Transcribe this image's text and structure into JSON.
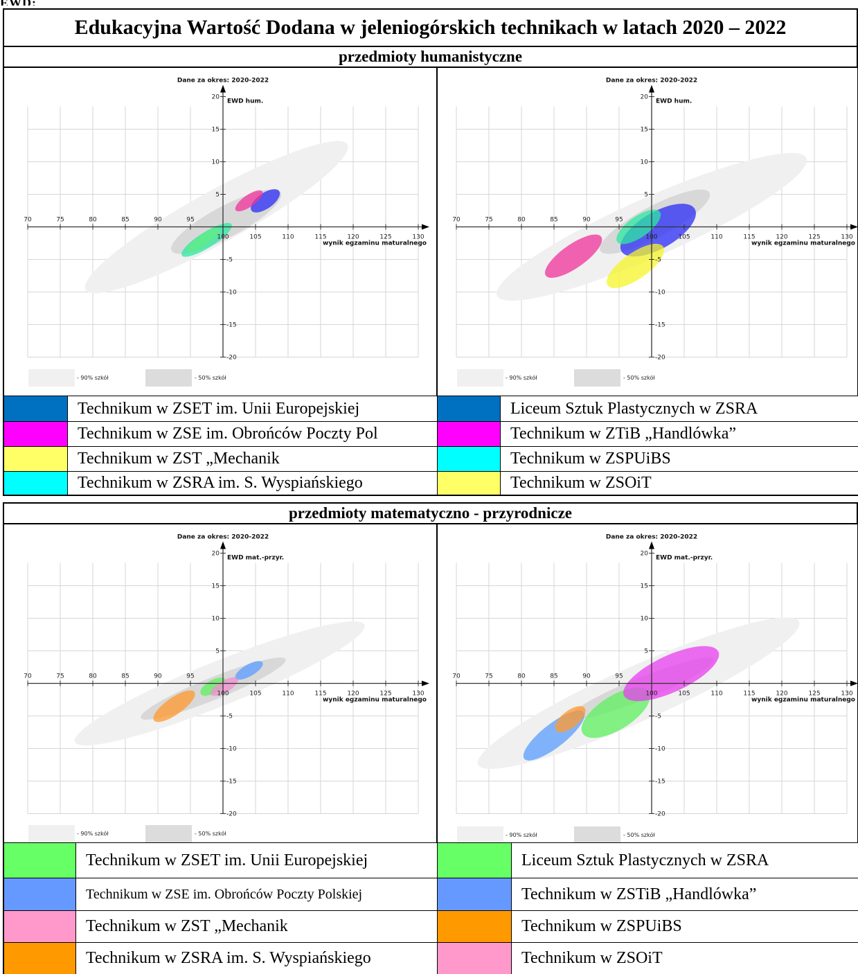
{
  "header_fragment": "EWD:",
  "title": "Edukacyjna Wartość Dodana w jeleniogórskich technikach w latach 2020 – 2022",
  "section1": "przedmioty humanistyczne",
  "section2": "przedmioty matematyczno - przyrodnicze",
  "chart_common": {
    "period": "Dane za okres: 2020-2022",
    "xlabel": "wynik egzaminu maturalnego",
    "legend_90": "- 90% szkół",
    "legend_50": "- 50% szkół",
    "xticks": [
      70,
      75,
      80,
      85,
      90,
      95,
      100,
      105,
      110,
      115,
      120,
      125,
      130
    ],
    "yticks": [
      -20,
      -15,
      -10,
      -5,
      5,
      10,
      15,
      20
    ]
  },
  "chart_data": [
    {
      "type": "scatter",
      "title": "Dane za okres: 2020-2022",
      "xlabel": "wynik egzaminu maturalnego",
      "ylabel": "EWD hum.",
      "xlim": [
        70,
        130
      ],
      "ylim": [
        -20,
        20
      ],
      "background": [
        {
          "name": "- 90% szkół",
          "x": 99,
          "y": 1.5,
          "w": 23,
          "h": 4.0,
          "angle": 29,
          "color": "#f0f0f0"
        },
        {
          "name": "- 50% szkół",
          "x": 100.5,
          "y": 0.8,
          "w": 9.5,
          "h": 2.4,
          "angle": 28,
          "color": "#d8d8d8"
        }
      ],
      "series": [
        {
          "name": "Technikum w ZSET im. Unii Europejskiej",
          "x": 106.5,
          "y": 4.0,
          "w": 2.6,
          "h": 1.2,
          "angle": 35,
          "color": "#2a2cf5"
        },
        {
          "name": "Technikum w ZSE im. Obrońców Poczty Pol",
          "x": 104,
          "y": 4.0,
          "w": 2.5,
          "h": 0.9,
          "angle": 35,
          "color": "#f0339a"
        },
        {
          "name": "Technikum  w ZST „Mechanik",
          "x": 97,
          "y": -2.0,
          "w": 3.0,
          "h": 0.8,
          "angle": 35,
          "color": "#f5f528"
        },
        {
          "name": "Technikum w ZSRA im. S. Wyspiańskiego",
          "x": 97.5,
          "y": -2.0,
          "w": 4.5,
          "h": 1.2,
          "angle": 32,
          "color": "#2de8a0"
        }
      ]
    },
    {
      "type": "scatter",
      "title": "Dane za okres: 2020-2022",
      "xlabel": "wynik egzaminu maturalnego",
      "ylabel": "EWD hum.",
      "xlim": [
        70,
        130
      ],
      "ylim": [
        -20,
        20
      ],
      "background": [
        {
          "name": "- 90% szkół",
          "x": 100,
          "y": 0,
          "w": 26,
          "h": 4.5,
          "angle": 24,
          "color": "#f0f0f0"
        },
        {
          "name": "- 50% szkół",
          "x": 100.5,
          "y": 0.8,
          "w": 9.5,
          "h": 2.4,
          "angle": 28,
          "color": "#d8d8d8"
        }
      ],
      "series": [
        {
          "name": "Liceum Sztuk Plastycznych w ZSRA",
          "x": 101,
          "y": -0.5,
          "w": 6.5,
          "h": 2.8,
          "angle": 30,
          "color": "#2a2cf5"
        },
        {
          "name": "Technikum w ZTiB „Handlówka”",
          "x": 88,
          "y": -4.5,
          "w": 5.2,
          "h": 1.8,
          "angle": 35,
          "color": "#f0339a"
        },
        {
          "name": "Technikum w ZSPUiBS",
          "x": 98,
          "y": 0,
          "w": 4.0,
          "h": 1.6,
          "angle": 35,
          "color": "#2de8a0"
        },
        {
          "name": "Technikum w ZSOiT",
          "x": 97.5,
          "y": -6.0,
          "w": 5.2,
          "h": 2.0,
          "angle": 35,
          "color": "#f5f528"
        }
      ]
    },
    {
      "type": "scatter",
      "title": "Dane za okres: 2020-2022",
      "xlabel": "wynik egzaminu maturalnego",
      "ylabel": "EWD mat.-przyr.",
      "xlim": [
        70,
        130
      ],
      "ylim": [
        -20,
        20
      ],
      "background": [
        {
          "name": "- 90% szkół",
          "x": 99.5,
          "y": 0,
          "w": 24,
          "h": 3.4,
          "angle": 22,
          "color": "#f0f0f0"
        },
        {
          "name": "- 50% szkół",
          "x": 98.5,
          "y": -0.8,
          "w": 12,
          "h": 1.7,
          "angle": 22,
          "color": "#d8d8d8"
        }
      ],
      "series": [
        {
          "name": "Technikum w ZSET im. Unii Europejskiej",
          "x": 98.5,
          "y": -0.5,
          "w": 2.2,
          "h": 1.0,
          "angle": 30,
          "color": "#5df05d"
        },
        {
          "name": "Technikum w ZSE im. Obrońców Poczty Polskiej",
          "x": 104,
          "y": 2.0,
          "w": 2.4,
          "h": 0.9,
          "angle": 30,
          "color": "#5b9dff"
        },
        {
          "name": "Technikum  w ZST „Mechanik",
          "x": 100.2,
          "y": -0.5,
          "w": 2.4,
          "h": 0.9,
          "angle": 30,
          "color": "#f28fd0"
        },
        {
          "name": "Technikum w ZSRA im. S. Wyspiańskiego",
          "x": 92.5,
          "y": -3.5,
          "w": 3.8,
          "h": 1.3,
          "angle": 35,
          "color": "#ff9a2e"
        }
      ]
    },
    {
      "type": "scatter",
      "title": "Dane za okres: 2020-2022",
      "xlabel": "wynik egzaminu maturalnego",
      "ylabel": "EWD mat.-przyr.",
      "xlim": [
        70,
        130
      ],
      "ylim": [
        -20,
        20
      ],
      "background": [
        {
          "name": "- 90% szkół",
          "x": 98,
          "y": -1.5,
          "w": 27,
          "h": 4.2,
          "angle": 24,
          "color": "#f0f0f0"
        },
        {
          "name": "- 50% szkół",
          "x": 98.5,
          "y": -0.8,
          "w": 12,
          "h": 1.7,
          "angle": 22,
          "color": "#d8d8d8"
        }
      ],
      "series": [
        {
          "name": "Liceum Sztuk Plastycznych w ZSRA",
          "x": 94.5,
          "y": -4.5,
          "w": 6.0,
          "h": 2.6,
          "angle": 32,
          "color": "#5df05d"
        },
        {
          "name": "Technikum w ZSTiB „Handlówka”",
          "x": 85,
          "y": -8.0,
          "w": 5.8,
          "h": 1.8,
          "angle": 38,
          "color": "#5b9dff"
        },
        {
          "name": "Technikum w ZSPUiBS",
          "x": 87.5,
          "y": -5.5,
          "w": 2.8,
          "h": 1.3,
          "angle": 38,
          "color": "#ff9a2e"
        },
        {
          "name": "Technikum w ZSOiT",
          "x": 103,
          "y": 1.5,
          "w": 8.0,
          "h": 2.8,
          "angle": 25,
          "color": "#ea3ff0"
        }
      ]
    }
  ],
  "legends": [
    {
      "items": [
        {
          "label": "Technikum w ZSET im. Unii Europejskiej",
          "color": "#0070c0"
        },
        {
          "label": "Technikum w ZSE im. Obrońców Poczty Pol",
          "color": "#ff00ff"
        },
        {
          "label": "Technikum  w ZST „Mechanik",
          "color": "#ffff66"
        },
        {
          "label": "Technikum w ZSRA im. S. Wyspiańskiego",
          "color": "#00ffff"
        }
      ]
    },
    {
      "items": [
        {
          "label": "Liceum Sztuk Plastycznych w ZSRA",
          "color": "#0070c0"
        },
        {
          "label": "Technikum w ZTiB „Handlówka”",
          "color": "#ff00ff"
        },
        {
          "label": "Technikum w ZSPUiBS",
          "color": "#00ffff"
        },
        {
          "label": "Technikum w ZSOiT",
          "color": "#ffff66"
        }
      ]
    },
    {
      "items": [
        {
          "label": "Technikum w ZSET im. Unii Europejskiej",
          "color": "#66ff66"
        },
        {
          "label": "Technikum w ZSE im. Obrońców Poczty Polskiej",
          "color": "#6699ff"
        },
        {
          "label": "Technikum  w ZST „Mechanik",
          "color": "#ff99cc"
        },
        {
          "label": "Technikum w ZSRA im. S. Wyspiańskiego",
          "color": "#ff9900"
        }
      ]
    },
    {
      "items": [
        {
          "label": "Liceum Sztuk Plastycznych w ZSRA",
          "color": "#66ff66"
        },
        {
          "label": "Technikum w ZSTiB „Handlówka”",
          "color": "#6699ff"
        },
        {
          "label": "Technikum w ZSPUiBS",
          "color": "#ff9900"
        },
        {
          "label": "Technikum w ZSOiT",
          "color": "#ff99cc"
        }
      ]
    }
  ]
}
